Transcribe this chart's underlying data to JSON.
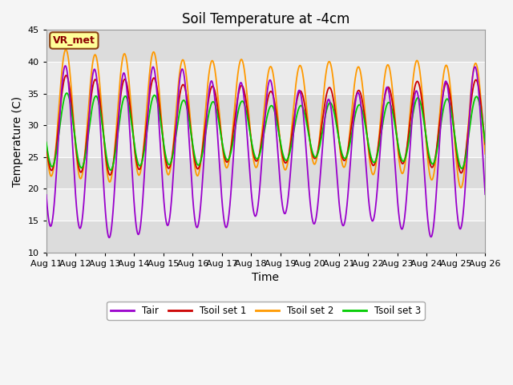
{
  "title": "Soil Temperature at -4cm",
  "xlabel": "Time",
  "ylabel": "Temperature (C)",
  "ylim": [
    10,
    45
  ],
  "colors": {
    "Tair": "#9900cc",
    "Tsoil_set1": "#cc0000",
    "Tsoil_set2": "#ff9900",
    "Tsoil_set3": "#00cc00"
  },
  "legend_labels": [
    "Tair",
    "Tsoil set 1",
    "Tsoil set 2",
    "Tsoil set 3"
  ],
  "annotation_text": "VR_met",
  "band_colors": [
    "#dcdcdc",
    "#ebebeb"
  ],
  "title_fontsize": 12,
  "axis_fontsize": 10,
  "tick_fontsize": 8
}
